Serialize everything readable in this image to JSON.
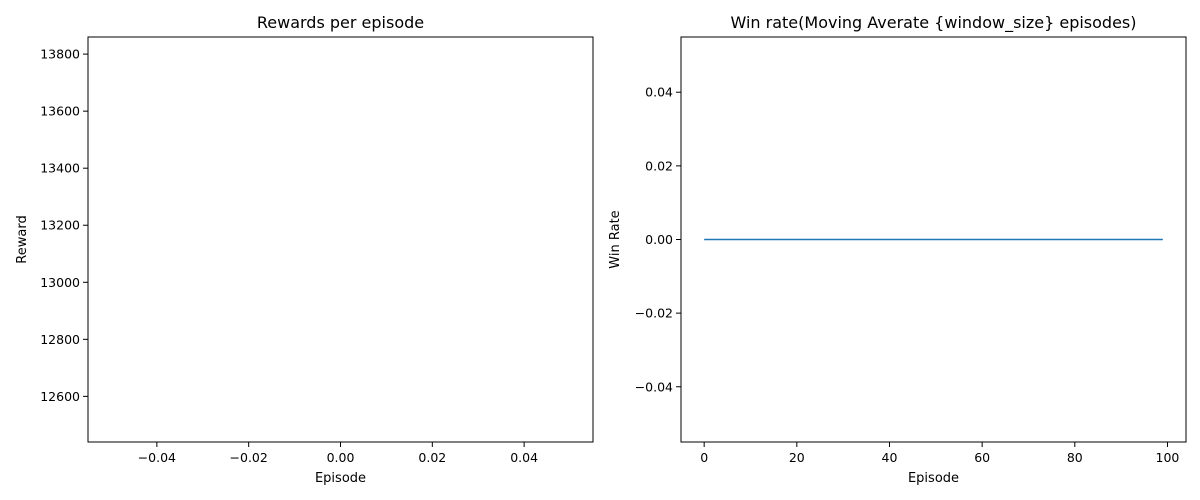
{
  "chart_data": [
    {
      "type": "scatter",
      "title": "Rewards per episode",
      "xlabel": "Episode",
      "ylabel": "Reward",
      "xlim": [
        -0.055,
        0.055
      ],
      "ylim": [
        12440,
        13860
      ],
      "x_ticks": [
        -0.04,
        -0.02,
        0.0,
        0.02,
        0.04
      ],
      "x_tick_labels": [
        "−0.04",
        "−0.02",
        "0.00",
        "0.02",
        "0.04"
      ],
      "y_ticks": [
        12600,
        12800,
        13000,
        13200,
        13400,
        13600,
        13800
      ],
      "y_tick_labels": [
        "12600",
        "12800",
        "13000",
        "13200",
        "13400",
        "13600",
        "13800"
      ],
      "grid": false,
      "series": [
        {
          "color": "#1f77b4",
          "x": [],
          "y": []
        }
      ]
    },
    {
      "type": "line",
      "title": "Win rate(Moving Averate {window_size} episodes)",
      "xlabel": "Episode",
      "ylabel": "Win Rate",
      "xlim": [
        -5,
        104
      ],
      "ylim": [
        -0.055,
        0.055
      ],
      "x_ticks": [
        0,
        20,
        40,
        60,
        80,
        100
      ],
      "x_tick_labels": [
        "0",
        "20",
        "40",
        "60",
        "80",
        "100"
      ],
      "y_ticks": [
        -0.04,
        -0.02,
        0.0,
        0.02,
        0.04
      ],
      "y_tick_labels": [
        "−0.04",
        "−0.02",
        "0.00",
        "0.02",
        "0.04"
      ],
      "grid": false,
      "series": [
        {
          "color": "#1f77b4",
          "x": [
            0,
            99
          ],
          "y": [
            0.0,
            0.0
          ]
        }
      ]
    }
  ]
}
